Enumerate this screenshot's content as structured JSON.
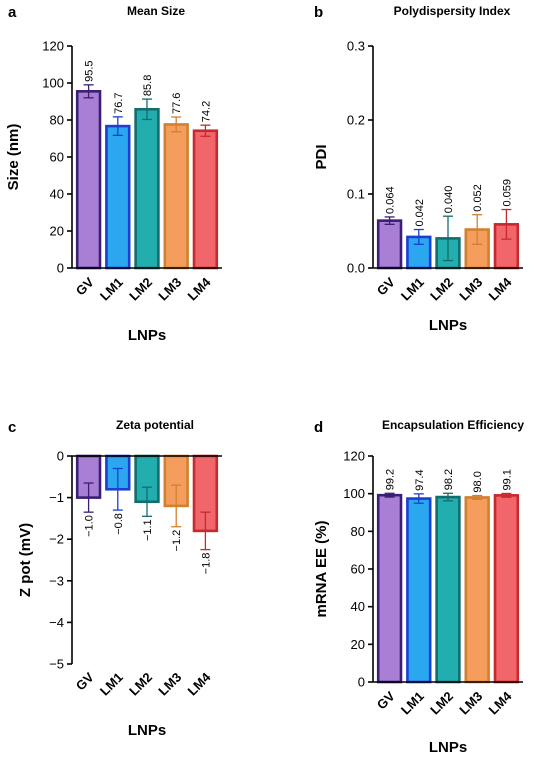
{
  "chart_data": [
    {
      "letter": "a",
      "type": "bar",
      "title": "Mean Size",
      "xlabel": "LNPs",
      "ylabel": "Size (nm)",
      "categories": [
        "GV",
        "LM1",
        "LM2",
        "LM3",
        "LM4"
      ],
      "values": [
        95.5,
        76.7,
        85.8,
        77.6,
        74.2
      ],
      "errors": [
        3.5,
        5.0,
        5.5,
        4.0,
        3.0
      ],
      "value_labels": [
        "95.5",
        "76.7",
        "85.8",
        "77.6",
        "74.2"
      ],
      "ylim": [
        0,
        120
      ],
      "yticks": [
        0,
        20,
        40,
        60,
        80,
        100,
        120
      ],
      "ytick_labels": [
        "0",
        "20",
        "40",
        "60",
        "80",
        "100",
        "120"
      ]
    },
    {
      "letter": "b",
      "type": "bar",
      "title": "Polydispersity Index",
      "xlabel": "LNPs",
      "ylabel": "PDI",
      "categories": [
        "GV",
        "LM1",
        "LM2",
        "LM3",
        "LM4"
      ],
      "values": [
        0.064,
        0.042,
        0.04,
        0.052,
        0.059
      ],
      "errors": [
        0.005,
        0.01,
        0.03,
        0.02,
        0.02
      ],
      "value_labels": [
        "0.064",
        "0.042",
        "0.040",
        "0.052",
        "0.059"
      ],
      "ylim": [
        0,
        0.3
      ],
      "yticks": [
        0,
        0.1,
        0.2,
        0.3
      ],
      "ytick_labels": [
        "0.0",
        "0.1",
        "0.2",
        "0.3"
      ]
    },
    {
      "letter": "c",
      "type": "bar",
      "title": "Zeta potential",
      "xlabel": "LNPs",
      "ylabel": "Z pot (mV)",
      "categories": [
        "GV",
        "LM1",
        "LM2",
        "LM3",
        "LM4"
      ],
      "values": [
        -1.0,
        -0.8,
        -1.1,
        -1.2,
        -1.8
      ],
      "errors": [
        0.35,
        0.5,
        0.35,
        0.5,
        0.45
      ],
      "value_labels": [
        "−1.0",
        "−0.8",
        "−1.1",
        "−1.2",
        "−1.8"
      ],
      "ylim": [
        -5,
        0
      ],
      "yticks": [
        0,
        -1,
        -2,
        -3,
        -4,
        -5
      ],
      "ytick_labels": [
        "0",
        "−1",
        "−2",
        "−3",
        "−4",
        "−5"
      ]
    },
    {
      "letter": "d",
      "type": "bar",
      "title": "Encapsulation Efficiency",
      "xlabel": "LNPs",
      "ylabel": "mRNA EE (%)",
      "categories": [
        "GV",
        "LM1",
        "LM2",
        "LM3",
        "LM4"
      ],
      "values": [
        99.2,
        97.4,
        98.2,
        98.0,
        99.1
      ],
      "errors": [
        1.0,
        2.5,
        2.0,
        1.0,
        1.0
      ],
      "value_labels": [
        "99.2",
        "97.4",
        "98.2",
        "98.0",
        "99.1"
      ],
      "ylim": [
        0,
        120
      ],
      "yticks": [
        0,
        20,
        40,
        60,
        80,
        100,
        120
      ],
      "ytick_labels": [
        "0",
        "20",
        "40",
        "60",
        "80",
        "100",
        "120"
      ]
    }
  ],
  "colors": {
    "fills": [
      "#a97fd6",
      "#2aa7ee",
      "#22aeae",
      "#f49d5d",
      "#f0666a"
    ],
    "strokes": [
      "#3b1f74",
      "#1d3fd0",
      "#146c6c",
      "#d2802e",
      "#c9282d"
    ]
  }
}
